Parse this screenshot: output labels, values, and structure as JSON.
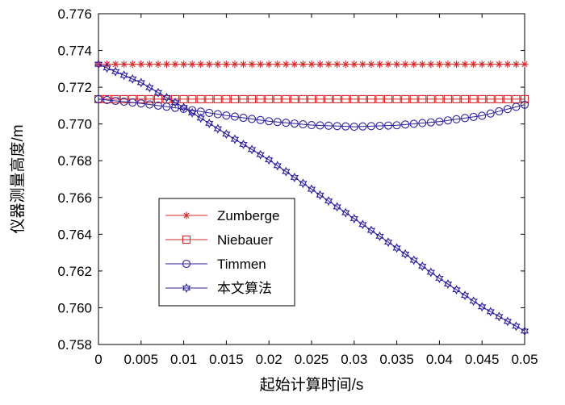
{
  "chart_data": {
    "type": "line",
    "title": "",
    "xlabel": "起始计算时间/s",
    "ylabel": "仪器测量高度/m",
    "xlim": [
      0,
      0.05
    ],
    "ylim": [
      0.758,
      0.776
    ],
    "xticks": [
      0,
      0.005,
      0.01,
      0.015,
      0.02,
      0.025,
      0.03,
      0.035,
      0.04,
      0.045,
      0.05
    ],
    "xtick_labels": [
      "0",
      "0.005",
      "0.01",
      "0.015",
      "0.02",
      "0.025",
      "0.03",
      "0.035",
      "0.04",
      "0.045",
      "0.05"
    ],
    "yticks": [
      0.758,
      0.76,
      0.762,
      0.764,
      0.766,
      0.768,
      0.77,
      0.772,
      0.774,
      0.776
    ],
    "ytick_labels": [
      "0.758",
      "0.760",
      "0.762",
      "0.764",
      "0.766",
      "0.768",
      "0.770",
      "0.772",
      "0.774",
      "0.776"
    ],
    "grid": false,
    "legend_position": "lower-left",
    "x": [
      0,
      0.005,
      0.01,
      0.015,
      0.02,
      0.025,
      0.03,
      0.035,
      0.04,
      0.045,
      0.05
    ],
    "series": [
      {
        "name": "Zumberge",
        "marker": "star",
        "color": "#d62728",
        "values": [
          0.77325,
          0.77325,
          0.77325,
          0.77325,
          0.77325,
          0.77325,
          0.77325,
          0.77325,
          0.77325,
          0.77325,
          0.77325
        ]
      },
      {
        "name": "Niebauer",
        "marker": "square",
        "color": "#d62728",
        "values": [
          0.77135,
          0.77135,
          0.77135,
          0.77135,
          0.77135,
          0.77135,
          0.77135,
          0.77135,
          0.77135,
          0.77135,
          0.77135
        ]
      },
      {
        "name": "Timmen",
        "marker": "circle",
        "color": "#2b1f9e",
        "values": [
          0.77135,
          0.77112,
          0.77082,
          0.77046,
          0.77015,
          0.76994,
          0.76985,
          0.76993,
          0.77013,
          0.77045,
          0.77105
        ]
      },
      {
        "name": "本文算法",
        "marker": "hexagram",
        "color": "#2b1f9e",
        "values": [
          0.77325,
          0.77225,
          0.7709,
          0.76945,
          0.76805,
          0.76645,
          0.76485,
          0.76325,
          0.7616,
          0.76005,
          0.75873
        ]
      }
    ]
  }
}
